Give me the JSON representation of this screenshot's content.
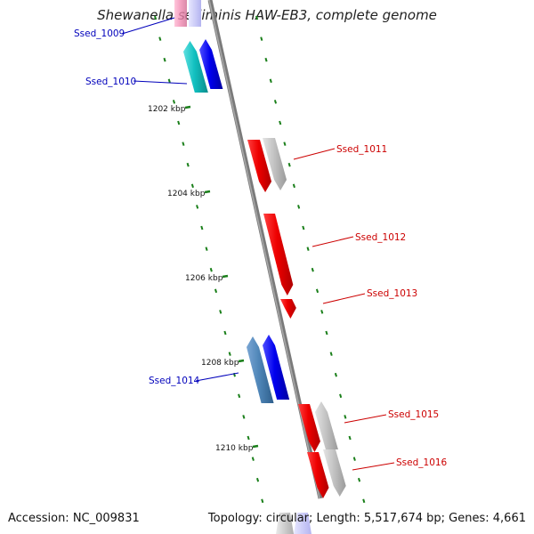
{
  "title": "Shewanella sediminis HAW-EB3, complete genome",
  "footer": {
    "accession": "Accession: NC_009831",
    "topology": "Topology: circular; Length: 5,517,674 bp; Genes: 4,661"
  },
  "colors": {
    "backbone": "#808080",
    "tick": "#1a7f1a",
    "label_blue": "#0000bb",
    "label_red": "#cc0000",
    "gene_blue": "#0000ee",
    "gene_red": "#ee0000",
    "gene_cyan": "#11c0c0",
    "gene_steel": "#4f86b8",
    "gene_gray": "#c0c0c0",
    "gene_pink": "#f28cb4"
  },
  "ticks": [
    {
      "label": "1202 kbp"
    },
    {
      "label": "1204 kbp"
    },
    {
      "label": "1206 kbp"
    },
    {
      "label": "1208 kbp"
    },
    {
      "label": "1210 kbp"
    }
  ],
  "gene_labels": [
    {
      "text": "Ssed_1009",
      "color": "label_blue"
    },
    {
      "text": "Ssed_1010",
      "color": "label_blue"
    },
    {
      "text": "Ssed_1011",
      "color": "label_red"
    },
    {
      "text": "Ssed_1012",
      "color": "label_red"
    },
    {
      "text": "Ssed_1013",
      "color": "label_red"
    },
    {
      "text": "Ssed_1014",
      "color": "label_blue"
    },
    {
      "text": "Ssed_1015",
      "color": "label_red"
    },
    {
      "text": "Ssed_1016",
      "color": "label_red"
    }
  ]
}
